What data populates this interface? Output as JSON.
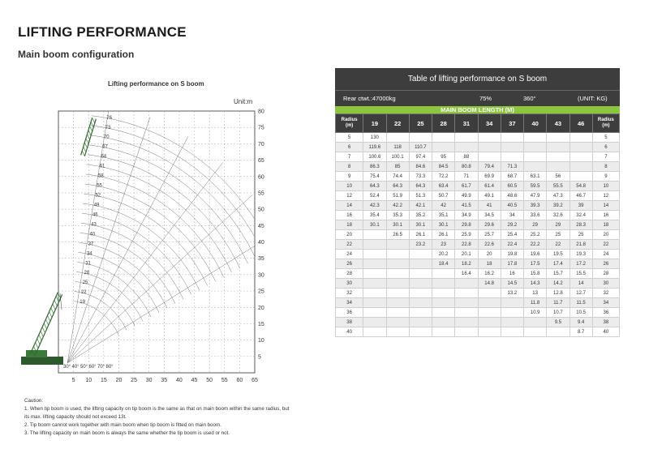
{
  "header": {
    "title": "LIFTING PERFORMANCE",
    "subtitle": "Main boom configuration"
  },
  "diagram": {
    "title": "Lifting performance on S boom",
    "unit": "Unit:m",
    "x_ticks": [
      "5",
      "10",
      "15",
      "20",
      "25",
      "30",
      "35",
      "40",
      "45",
      "50",
      "55",
      "60",
      "65"
    ],
    "y_ticks": [
      "5",
      "10",
      "15",
      "20",
      "25",
      "30",
      "35",
      "40",
      "45",
      "50",
      "55",
      "60",
      "65",
      "70",
      "75",
      "80"
    ],
    "boom_lengths": [
      "19",
      "22",
      "25",
      "28",
      "31",
      "34",
      "37",
      "40",
      "43",
      "46",
      "49",
      "52",
      "55",
      "58",
      "61",
      "64",
      "67",
      "70",
      "73",
      "76"
    ],
    "angles": [
      "30°",
      "40°",
      "50°",
      "60°",
      "70°",
      "80°"
    ]
  },
  "caution": {
    "heading": "Caution:",
    "lines": [
      "1. When tip boom is used, the lifting capacity on tip boom is the same as that on main boom within the same radius, but its max. lifting capacity should not exceed 13t.",
      "2. Tip boom cannot work together with main boom when tip boom is fitted on main boom.",
      "3. The lifting capacity on main boom is always the same whether the tip boom is used or not."
    ]
  },
  "table": {
    "title": "Table of lifting performance on S boom",
    "rear_ctwt": "Rear ctwt.:47000kg",
    "percent": "75%",
    "rotation": "360°",
    "unit": "(UNIT: KG)",
    "green_band": "MAIN BOOM LENGTH (M)",
    "radius_header": [
      "Radius",
      "(m)"
    ],
    "boom_lengths": [
      "19",
      "22",
      "25",
      "28",
      "31",
      "34",
      "37",
      "40",
      "43",
      "46"
    ],
    "rows": [
      {
        "r": "5",
        "v": [
          "130",
          "",
          "",
          "",
          "",
          "",
          "",
          "",
          "",
          ""
        ]
      },
      {
        "r": "6",
        "v": [
          "119.6",
          "118",
          "110.7",
          "",
          "",
          "",
          "",
          "",
          "",
          ""
        ]
      },
      {
        "r": "7",
        "v": [
          "100.6",
          "100.1",
          "97.4",
          "95",
          "88",
          "",
          "",
          "",
          "",
          ""
        ]
      },
      {
        "r": "8",
        "v": [
          "86.3",
          "85",
          "84.6",
          "84.5",
          "80.8",
          "79.4",
          "71.3",
          "",
          "",
          ""
        ]
      },
      {
        "r": "9",
        "v": [
          "75.4",
          "74.4",
          "73.3",
          "72.2",
          "71",
          "69.9",
          "68.7",
          "63.1",
          "56",
          ""
        ]
      },
      {
        "r": "10",
        "v": [
          "64.3",
          "64.3",
          "64.3",
          "63.4",
          "61.7",
          "61.4",
          "60.5",
          "59.5",
          "55.5",
          "54.8"
        ]
      },
      {
        "r": "12",
        "v": [
          "52.4",
          "51.9",
          "51.3",
          "50.7",
          "49.9",
          "49.1",
          "48.6",
          "47.9",
          "47.3",
          "46.7"
        ]
      },
      {
        "r": "14",
        "v": [
          "42.3",
          "42.2",
          "42.1",
          "42",
          "41.5",
          "41",
          "40.5",
          "39.3",
          "39.2",
          "39"
        ]
      },
      {
        "r": "16",
        "v": [
          "35.4",
          "35.3",
          "35.2",
          "35.1",
          "34.9",
          "34.5",
          "34",
          "33.6",
          "32.6",
          "32.4"
        ]
      },
      {
        "r": "18",
        "v": [
          "30.1",
          "30.1",
          "30.1",
          "30.1",
          "29.8",
          "29.6",
          "29.2",
          "29",
          "29",
          "28.3"
        ]
      },
      {
        "r": "20",
        "v": [
          "",
          "26.5",
          "26.1",
          "26.1",
          "25.9",
          "25.7",
          "25.4",
          "25.2",
          "25",
          "25"
        ]
      },
      {
        "r": "22",
        "v": [
          "",
          "",
          "23.2",
          "23",
          "22.8",
          "22.6",
          "22.4",
          "22.2",
          "22",
          "21.8"
        ]
      },
      {
        "r": "24",
        "v": [
          "",
          "",
          "",
          "20.2",
          "20.1",
          "20",
          "19.8",
          "19.6",
          "19.5",
          "19.3"
        ]
      },
      {
        "r": "26",
        "v": [
          "",
          "",
          "",
          "18.4",
          "18.2",
          "18",
          "17.8",
          "17.5",
          "17.4",
          "17.2"
        ]
      },
      {
        "r": "28",
        "v": [
          "",
          "",
          "",
          "",
          "16.4",
          "16.2",
          "16",
          "15.8",
          "15.7",
          "15.5"
        ]
      },
      {
        "r": "30",
        "v": [
          "",
          "",
          "",
          "",
          "",
          "14.8",
          "14.5",
          "14.3",
          "14.2",
          "14"
        ]
      },
      {
        "r": "32",
        "v": [
          "",
          "",
          "",
          "",
          "",
          "",
          "13.2",
          "13",
          "12.8",
          "12.7"
        ]
      },
      {
        "r": "34",
        "v": [
          "",
          "",
          "",
          "",
          "",
          "",
          "",
          "11.8",
          "11.7",
          "11.5"
        ]
      },
      {
        "r": "36",
        "v": [
          "",
          "",
          "",
          "",
          "",
          "",
          "",
          "10.9",
          "10.7",
          "10.5"
        ]
      },
      {
        "r": "38",
        "v": [
          "",
          "",
          "",
          "",
          "",
          "",
          "",
          "",
          "9.5",
          "9.4"
        ]
      },
      {
        "r": "40",
        "v": [
          "",
          "",
          "",
          "",
          "",
          "",
          "",
          "",
          "",
          "8.7"
        ]
      }
    ]
  },
  "colors": {
    "header_bg": "#3d3d3d",
    "green_band": "#8cc63f",
    "row_alt": "#ececec"
  }
}
